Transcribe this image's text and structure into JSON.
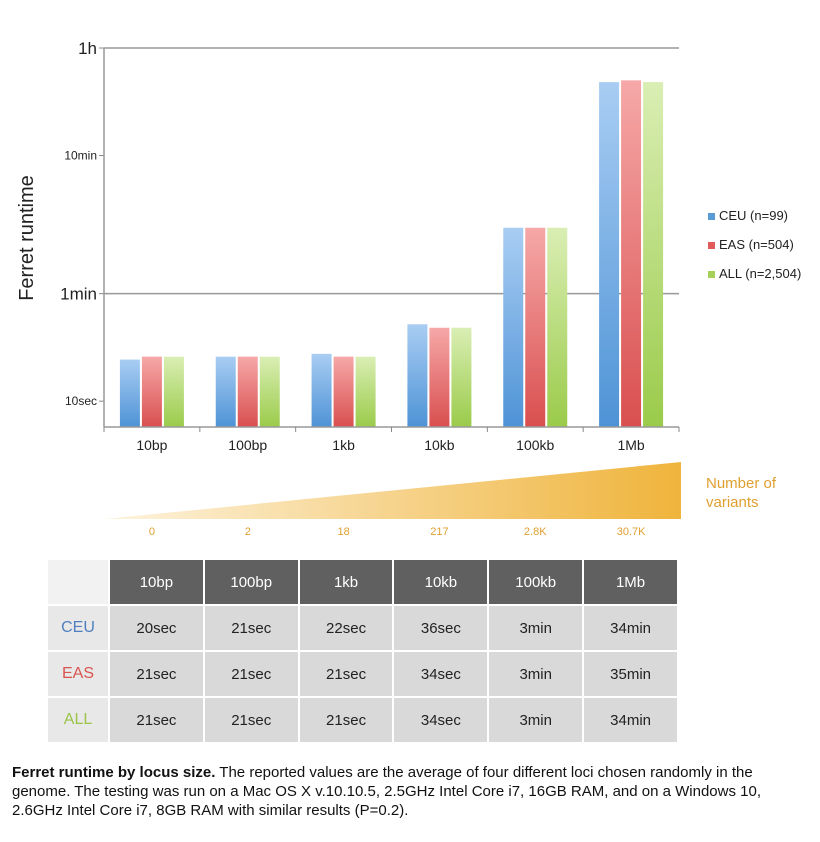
{
  "chart_data": {
    "type": "bar",
    "ylabel": "Ferret runtime",
    "yscale": "log",
    "ylim_seconds": [
      6.5,
      3600
    ],
    "y_ticks": [
      {
        "label": "1h",
        "seconds": 3600,
        "major": true
      },
      {
        "label": "1min",
        "seconds": 60,
        "major": true
      },
      {
        "label": "10min",
        "seconds": 600,
        "major": false
      },
      {
        "label": "10sec",
        "seconds": 10,
        "major": false
      }
    ],
    "categories": [
      "10bp",
      "100bp",
      "1kb",
      "10kb",
      "100kb",
      "1Mb"
    ],
    "series": [
      {
        "name": "CEU (n=99)",
        "color": "#5b9bd5",
        "values_seconds": [
          20,
          21,
          22,
          36,
          180,
          2040
        ]
      },
      {
        "name": "EAS (n=504)",
        "color": "#e05a5a",
        "values_seconds": [
          21,
          21,
          21,
          34,
          180,
          2100
        ]
      },
      {
        "name": "ALL (n=2,504)",
        "color": "#a6d05a",
        "values_seconds": [
          21,
          21,
          21,
          34,
          180,
          2040
        ]
      }
    ],
    "legend_position": "right",
    "grid": "major horizontal lines only"
  },
  "variants": {
    "title": "Number of variants",
    "counts": [
      "0",
      "2",
      "18",
      "217",
      "2.8K",
      "30.7K"
    ],
    "label_color": "#e0a030"
  },
  "table": {
    "headers": [
      "10bp",
      "100bp",
      "1kb",
      "10kb",
      "100kb",
      "1Mb"
    ],
    "rows": [
      {
        "label": "CEU",
        "color": "#4f7fc0",
        "cells": [
          "20sec",
          "21sec",
          "22sec",
          "36sec",
          "3min",
          "34min"
        ]
      },
      {
        "label": "EAS",
        "color": "#d9534f",
        "cells": [
          "21sec",
          "21sec",
          "21sec",
          "34sec",
          "3min",
          "35min"
        ]
      },
      {
        "label": "ALL",
        "color": "#9cc44a",
        "cells": [
          "21sec",
          "21sec",
          "21sec",
          "34sec",
          "3min",
          "34min"
        ]
      }
    ]
  },
  "caption": {
    "bold": "Ferret runtime by locus size.",
    "text": " The reported values are the average of four different loci chosen randomly in the genome. The testing was run on a Mac OS X v.10.10.5, 2.5GHz Intel Core i7, 16GB RAM, and on a Windows 10, 2.6GHz Intel Core i7, 8GB RAM with similar results (P=0.2)."
  }
}
